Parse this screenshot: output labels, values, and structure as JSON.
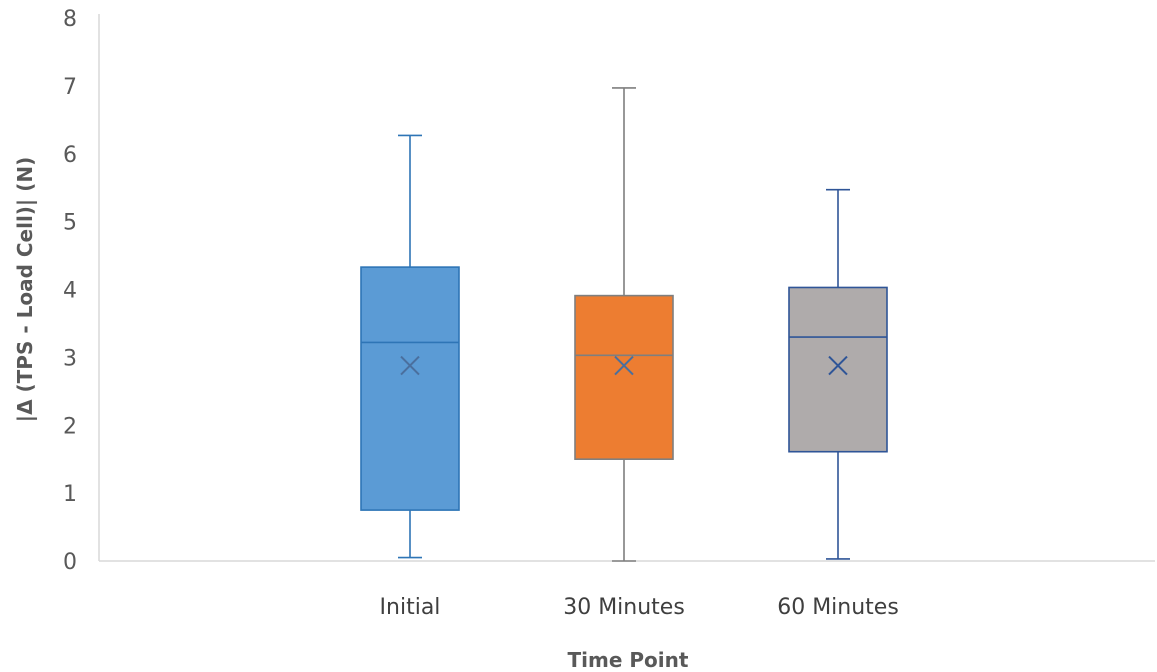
{
  "chart_data": {
    "type": "box",
    "title": "",
    "xlabel": "Time Point",
    "ylabel": "|Δ (TPS - Load Cell)| (N)",
    "ylim": [
      0,
      8
    ],
    "yticks": [
      0,
      1,
      2,
      3,
      4,
      5,
      6,
      7,
      8
    ],
    "grid": false,
    "legend": "none",
    "categories": [
      "Initial",
      "30 Minutes",
      "60 Minutes"
    ],
    "series": [
      {
        "name": "Initial",
        "min": 0.05,
        "q1": 0.75,
        "median": 3.22,
        "q3": 4.33,
        "max": 6.27,
        "mean": 2.88,
        "fill": "#5b9bd5",
        "stroke": "#2e75b6",
        "whisker": "#2e75b6"
      },
      {
        "name": "30 Minutes",
        "min": 0.0,
        "q1": 1.5,
        "median": 3.03,
        "q3": 3.91,
        "max": 6.97,
        "mean": 2.88,
        "fill": "#ed7d31",
        "stroke": "#7f7f7f",
        "whisker": "#7f7f7f"
      },
      {
        "name": "60 Minutes",
        "min": 0.03,
        "q1": 1.61,
        "median": 3.3,
        "q3": 4.03,
        "max": 5.47,
        "mean": 2.88,
        "fill": "#afabab",
        "stroke": "#2f5597",
        "whisker": "#2f5597"
      }
    ]
  }
}
